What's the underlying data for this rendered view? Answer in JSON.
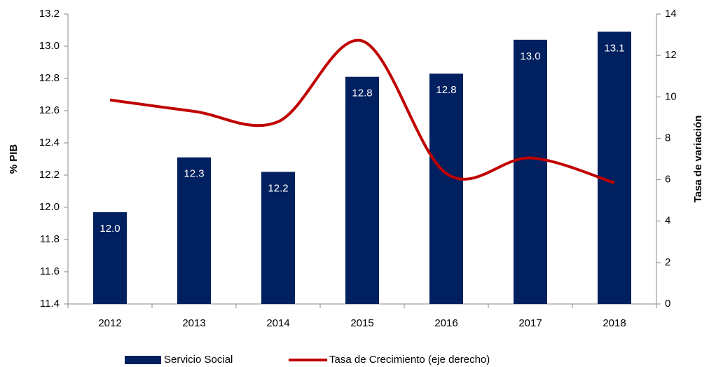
{
  "chart_data": {
    "type": "bar",
    "y_label": "% PIB",
    "y2_label": "Tasa de variación",
    "categories": [
      "2012",
      "2013",
      "2014",
      "2015",
      "2016",
      "2017",
      "2018"
    ],
    "series": [
      {
        "name": "Servicio Social",
        "type": "bar",
        "color": "#002060",
        "values": [
          11.97,
          12.31,
          12.22,
          12.81,
          12.83,
          13.04,
          13.09
        ],
        "value_labels": [
          "12.0",
          "12.3",
          "12.2",
          "12.8",
          "12.8",
          "13.0",
          "13.1"
        ]
      },
      {
        "name": "Tasa de Crecimiento (eje derecho)",
        "type": "line",
        "color": "#c00000",
        "axis": "y2",
        "values": [
          9.85,
          9.3,
          8.8,
          12.7,
          6.3,
          7.05,
          5.85
        ]
      }
    ],
    "ylim": [
      11.4,
      13.2
    ],
    "yticks": [
      11.4,
      11.6,
      11.8,
      {
        "value": 12,
        "label": "12.0"
      },
      12.2,
      12.4,
      12.6,
      12.8,
      {
        "value": 13,
        "label": "13.0"
      },
      13.2
    ],
    "y2lim": [
      0,
      14
    ],
    "y2ticks": [
      0,
      2,
      4,
      6,
      8,
      10,
      12,
      14
    ],
    "legend": "bottom"
  }
}
